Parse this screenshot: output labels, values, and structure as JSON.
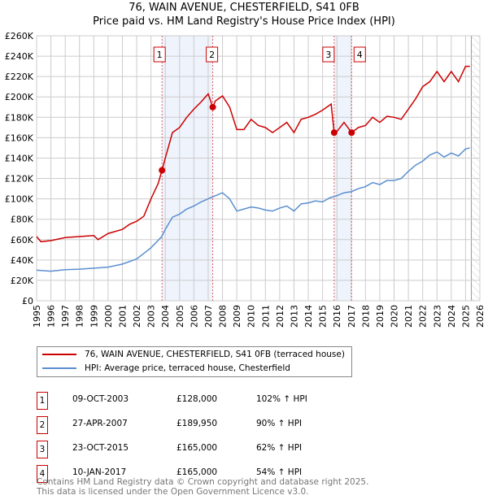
{
  "chart_data": {
    "type": "line",
    "title": "76, WAIN AVENUE, CHESTERFIELD, S41 0FB",
    "subtitle": "Price paid vs. HM Land Registry's House Price Index (HPI)",
    "xlim": [
      1995,
      2026
    ],
    "ylim": [
      0,
      260000
    ],
    "x_ticks": [
      "1995",
      "1996",
      "1997",
      "1998",
      "1999",
      "2000",
      "2001",
      "2002",
      "2003",
      "2004",
      "2005",
      "2006",
      "2007",
      "2008",
      "2009",
      "2010",
      "2011",
      "2012",
      "2013",
      "2014",
      "2015",
      "2016",
      "2017",
      "2018",
      "2019",
      "2020",
      "2021",
      "2022",
      "2023",
      "2024",
      "2025",
      "2026"
    ],
    "y_ticks": [
      "£0",
      "£20K",
      "£40K",
      "£60K",
      "£80K",
      "£100K",
      "£120K",
      "£140K",
      "£160K",
      "£180K",
      "£200K",
      "£220K",
      "£240K",
      "£260K"
    ],
    "grid": true,
    "series": [
      {
        "name": "76, WAIN AVENUE, CHESTERFIELD, S41 0FB (terraced house)",
        "color": "#cc0000",
        "x": [
          1995,
          1995.3,
          1996,
          1997,
          1998,
          1999,
          1999.3,
          2000,
          2001,
          2001.5,
          2002,
          2002.5,
          2003,
          2003.5,
          2003.77,
          2004,
          2004.5,
          2005,
          2005.5,
          2006,
          2006.5,
          2007,
          2007.32,
          2007.5,
          2008,
          2008.5,
          2009,
          2009.5,
          2010,
          2010.5,
          2011,
          2011.5,
          2012,
          2012.5,
          2013,
          2013.5,
          2014,
          2014.5,
          2015,
          2015.6,
          2015.81,
          2016,
          2016.5,
          2017.03,
          2017.5,
          2018,
          2018.5,
          2019,
          2019.5,
          2020,
          2020.5,
          2021,
          2021.5,
          2022,
          2022.5,
          2023,
          2023.5,
          2024,
          2024.5,
          2025,
          2025.3
        ],
        "y": [
          63000,
          58000,
          59000,
          62000,
          63000,
          64000,
          60000,
          66000,
          70000,
          75000,
          78000,
          83000,
          100000,
          115000,
          128000,
          140000,
          165000,
          170000,
          180000,
          188000,
          195000,
          203000,
          189950,
          196000,
          201000,
          190000,
          168000,
          168000,
          178000,
          172000,
          170000,
          165000,
          170000,
          175000,
          165000,
          178000,
          180000,
          183000,
          187000,
          193000,
          165000,
          166000,
          175000,
          165000,
          170000,
          172000,
          180000,
          175000,
          181000,
          180000,
          178000,
          188000,
          198000,
          210000,
          215000,
          225000,
          215000,
          225000,
          215000,
          230000,
          230000
        ]
      },
      {
        "name": "HPI: Average price, terraced house, Chesterfield",
        "color": "#5b8fd0",
        "x": [
          1995,
          1996,
          1997,
          1998,
          1999,
          2000,
          2001,
          2002,
          2003,
          2003.75,
          2004,
          2004.5,
          2005,
          2005.5,
          2006,
          2006.5,
          2007,
          2007.5,
          2008,
          2008.5,
          2009,
          2009.5,
          2010,
          2010.5,
          2011,
          2011.5,
          2012,
          2012.5,
          2013,
          2013.5,
          2014,
          2014.5,
          2015,
          2015.5,
          2016,
          2016.5,
          2017,
          2017.5,
          2018,
          2018.5,
          2019,
          2019.5,
          2020,
          2020.5,
          2021,
          2021.5,
          2022,
          2022.5,
          2023,
          2023.5,
          2024,
          2024.5,
          2025,
          2025.3
        ],
        "y": [
          30000,
          29000,
          30500,
          31000,
          32000,
          33000,
          36000,
          41000,
          52000,
          63000,
          70000,
          82000,
          85000,
          90000,
          93000,
          97000,
          100000,
          103000,
          106000,
          100000,
          88000,
          90000,
          92000,
          91000,
          89000,
          88000,
          91000,
          93000,
          88000,
          95000,
          96000,
          98000,
          97000,
          101000,
          103000,
          106000,
          107000,
          110000,
          112000,
          116000,
          114000,
          118000,
          118000,
          120000,
          127000,
          133000,
          137000,
          143000,
          146000,
          141000,
          145000,
          142000,
          149000,
          150000
        ]
      }
    ],
    "sales": [
      {
        "label": "1",
        "x": 2003.77,
        "y": 128000
      },
      {
        "label": "2",
        "x": 2007.32,
        "y": 189950
      },
      {
        "label": "3",
        "x": 2015.81,
        "y": 165000
      },
      {
        "label": "4",
        "x": 2017.03,
        "y": 165000
      }
    ],
    "shaded": [
      [
        2003.77,
        2007.32
      ],
      [
        2015.81,
        2017.03
      ]
    ],
    "hatched_from": 2025.4
  },
  "legend": {
    "red": "76, WAIN AVENUE, CHESTERFIELD, S41 0FB (terraced house)",
    "blue": "HPI: Average price, terraced house, Chesterfield"
  },
  "transactions": [
    {
      "num": "1",
      "date": "09-OCT-2003",
      "price": "£128,000",
      "hpi": "102% ↑ HPI"
    },
    {
      "num": "2",
      "date": "27-APR-2007",
      "price": "£189,950",
      "hpi": "90% ↑ HPI"
    },
    {
      "num": "3",
      "date": "23-OCT-2015",
      "price": "£165,000",
      "hpi": "62% ↑ HPI"
    },
    {
      "num": "4",
      "date": "10-JAN-2017",
      "price": "£165,000",
      "hpi": "54% ↑ HPI"
    }
  ],
  "footer": {
    "line1": "Contains HM Land Registry data © Crown copyright and database right 2025.",
    "line2": "This data is licensed under the Open Government Licence v3.0."
  }
}
